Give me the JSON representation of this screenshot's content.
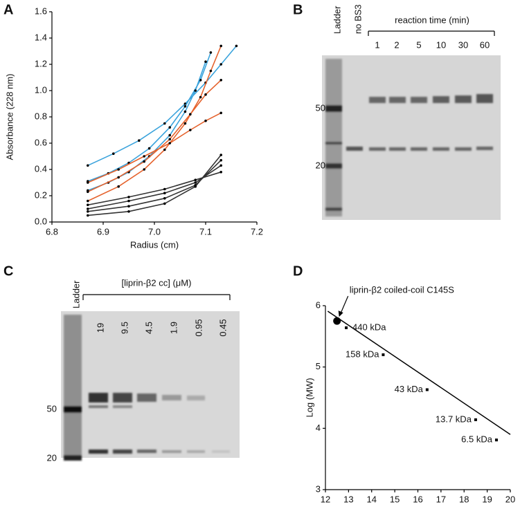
{
  "chart_data": [
    {
      "type": "line",
      "letter": "A",
      "xlabel": "Radius (cm)",
      "ylabel": "Absorbance (228 nm)",
      "xlim": [
        6.8,
        7.2
      ],
      "ylim": [
        0,
        1.6
      ],
      "xticks": [
        6.8,
        6.9,
        {
          "value": 7.0,
          "label": "7.0"
        },
        7.1,
        7.2
      ],
      "yticks": [
        {
          "value": 0,
          "label": "0.0"
        },
        0.2,
        0.4,
        0.6,
        0.8,
        {
          "value": 1.0,
          "label": "1.0"
        },
        1.2,
        1.4,
        1.6
      ],
      "series": [
        {
          "color": "#3aa3dc",
          "x": [
            6.87,
            6.92,
            6.97,
            7.02,
            7.06,
            7.1,
            7.13,
            7.16
          ],
          "values": [
            0.43,
            0.52,
            0.62,
            0.75,
            0.9,
            1.06,
            1.2,
            1.34
          ]
        },
        {
          "color": "#3aa3dc",
          "x": [
            6.87,
            6.91,
            6.95,
            6.99,
            7.03,
            7.06,
            7.09,
            7.11
          ],
          "values": [
            0.31,
            0.37,
            0.45,
            0.56,
            0.72,
            0.88,
            1.08,
            1.29
          ]
        },
        {
          "color": "#3aa3dc",
          "x": [
            6.87,
            6.91,
            6.95,
            6.99,
            7.03,
            7.06,
            7.08,
            7.1
          ],
          "values": [
            0.24,
            0.3,
            0.38,
            0.5,
            0.66,
            0.84,
            1.0,
            1.22
          ]
        },
        {
          "color": "#e5622c",
          "x": [
            6.87,
            6.93,
            6.98,
            7.02,
            7.06,
            7.09,
            7.11,
            7.13
          ],
          "values": [
            0.16,
            0.27,
            0.4,
            0.55,
            0.75,
            0.95,
            1.15,
            1.34
          ]
        },
        {
          "color": "#e5622c",
          "x": [
            6.87,
            6.93,
            6.98,
            7.03,
            7.07,
            7.1,
            7.13
          ],
          "values": [
            0.23,
            0.34,
            0.46,
            0.63,
            0.82,
            0.97,
            1.08
          ]
        },
        {
          "color": "#e5622c",
          "x": [
            6.87,
            6.93,
            6.98,
            7.03,
            7.07,
            7.1,
            7.13
          ],
          "values": [
            0.3,
            0.4,
            0.5,
            0.6,
            0.7,
            0.77,
            0.83
          ]
        },
        {
          "color": "#333333",
          "x": [
            6.87,
            6.95,
            7.02,
            7.08,
            7.13
          ],
          "values": [
            0.13,
            0.19,
            0.25,
            0.32,
            0.38
          ]
        },
        {
          "color": "#333333",
          "x": [
            6.87,
            6.95,
            7.02,
            7.08,
            7.13
          ],
          "values": [
            0.1,
            0.16,
            0.22,
            0.3,
            0.43
          ]
        },
        {
          "color": "#333333",
          "x": [
            6.87,
            6.95,
            7.02,
            7.08,
            7.13
          ],
          "values": [
            0.08,
            0.12,
            0.18,
            0.28,
            0.47
          ]
        },
        {
          "color": "#333333",
          "x": [
            6.87,
            6.95,
            7.02,
            7.08,
            7.13
          ],
          "values": [
            0.05,
            0.08,
            0.14,
            0.27,
            0.51
          ]
        }
      ]
    },
    {
      "type": "scatter",
      "letter": "D",
      "xlabel": "Elution Volume (mL)",
      "ylabel": "Log (MW)",
      "xlim": [
        12,
        20
      ],
      "ylim": [
        3,
        6
      ],
      "xticks": [
        12,
        13,
        14,
        15,
        16,
        17,
        18,
        19,
        20
      ],
      "yticks": [
        3,
        4,
        5,
        6
      ],
      "standards": {
        "x": [
          12.9,
          14.5,
          16.4,
          18.5,
          19.4
        ],
        "values": [
          5.64,
          5.2,
          4.63,
          4.14,
          3.81
        ],
        "labels": [
          "440 kDa",
          "158 kDa",
          "43 kDa",
          "13.7 kDa",
          "6.5 kDa"
        ]
      },
      "sample": {
        "x": 12.5,
        "value": 5.75,
        "label": "liprin-β2 coiled-coil C145S"
      },
      "fit": {
        "x": [
          12.1,
          20
        ],
        "values": [
          5.91,
          3.9
        ]
      }
    }
  ],
  "gels": [
    {
      "letter": "B",
      "ladder": "Ladder",
      "control": "no BS3",
      "group_label": "reaction time (min)",
      "lanes": [
        "1",
        "2",
        "5",
        "10",
        "30",
        "60"
      ],
      "markers": [
        "50",
        "20"
      ]
    },
    {
      "letter": "C",
      "ladder": "Ladder",
      "group_label": "[liprin-β2 cc] (μM)",
      "lanes": [
        "19",
        "9.5",
        "4.5",
        "1.9",
        "0.95",
        "0.45"
      ],
      "markers": [
        "50",
        "20"
      ]
    }
  ]
}
